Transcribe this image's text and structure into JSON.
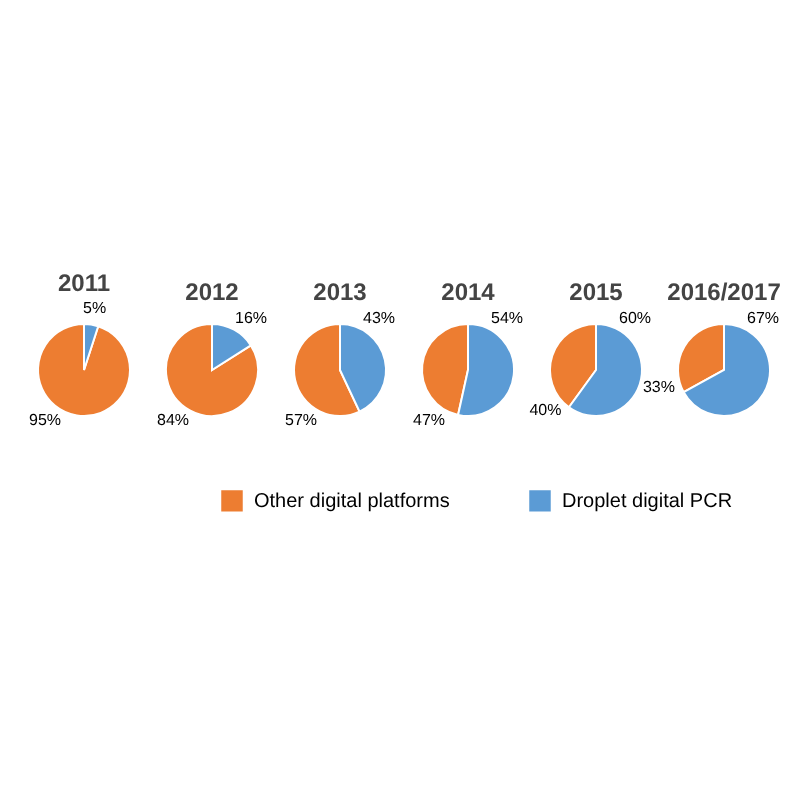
{
  "chart_data": [
    {
      "type": "pie",
      "title": "2011",
      "categories": [
        "Other digital platforms",
        "Droplet digital PCR"
      ],
      "values": [
        95,
        5
      ],
      "value_labels": [
        "95%",
        "5%"
      ],
      "colors": [
        "#ed7d31",
        "#5b9bd5"
      ],
      "legend": "bottom"
    },
    {
      "type": "pie",
      "title": "2012",
      "values": [
        84,
        16
      ],
      "value_labels": [
        "84%",
        "16%"
      ],
      "colors": [
        "#ed7d31",
        "#5b9bd5"
      ]
    },
    {
      "type": "pie",
      "title": "2013",
      "values": [
        57,
        43
      ],
      "value_labels": [
        "57%",
        "43%"
      ],
      "colors": [
        "#ed7d31",
        "#5b9bd5"
      ]
    },
    {
      "type": "pie",
      "title": "2014",
      "values": [
        47,
        54
      ],
      "value_labels": [
        "47%",
        "54%"
      ],
      "colors": [
        "#ed7d31",
        "#5b9bd5"
      ]
    },
    {
      "type": "pie",
      "title": "2015",
      "values": [
        40,
        60
      ],
      "value_labels": [
        "40%",
        "60%"
      ],
      "colors": [
        "#ed7d31",
        "#5b9bd5"
      ]
    },
    {
      "type": "pie",
      "title": "2016/2017",
      "values": [
        33,
        67
      ],
      "value_labels": [
        "33%",
        "67%"
      ],
      "colors": [
        "#ed7d31",
        "#5b9bd5"
      ]
    }
  ]
}
